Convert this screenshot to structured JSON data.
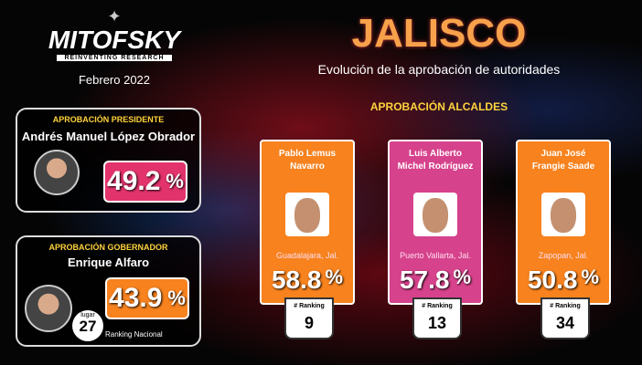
{
  "header": {
    "logo": "MITOFSKY",
    "tagline": "REINVENTING RESEARCH",
    "date": "Febrero 2022",
    "title": "JALISCO",
    "subtitle": "Evolución de la aprobación de autoridades"
  },
  "unit": "%",
  "president": {
    "label": "APROBACIÓN PRESIDENTE",
    "name": "Andrés Manuel López Obrador",
    "approval": 49.2
  },
  "governor": {
    "label": "APROBACIÓN GOBERNADOR",
    "name": "Enrique Alfaro",
    "approval": 43.9,
    "rank_label": "lugar",
    "rank": 27,
    "rank_caption": "Ranking Nacional"
  },
  "mayors": {
    "title": "APROBACIÓN ALCALDES",
    "ranking_label": "# Ranking",
    "items": [
      {
        "name_lines": [
          "Pablo Lemus",
          "Navarro"
        ],
        "city": "Guadalajara, Jal.",
        "approval": 58.8,
        "rank": 9,
        "color": "#f7821e"
      },
      {
        "name_lines": [
          "Luis Alberto",
          "Michel Rodríguez"
        ],
        "city": "Puerto Vallarta, Jal.",
        "approval": 57.8,
        "rank": 13,
        "color": "#d6428c"
      },
      {
        "name_lines": [
          "Juan José",
          "Frangie Saade"
        ],
        "city": "Zapopan, Jal.",
        "approval": 50.8,
        "rank": 34,
        "color": "#f7821e"
      }
    ]
  }
}
